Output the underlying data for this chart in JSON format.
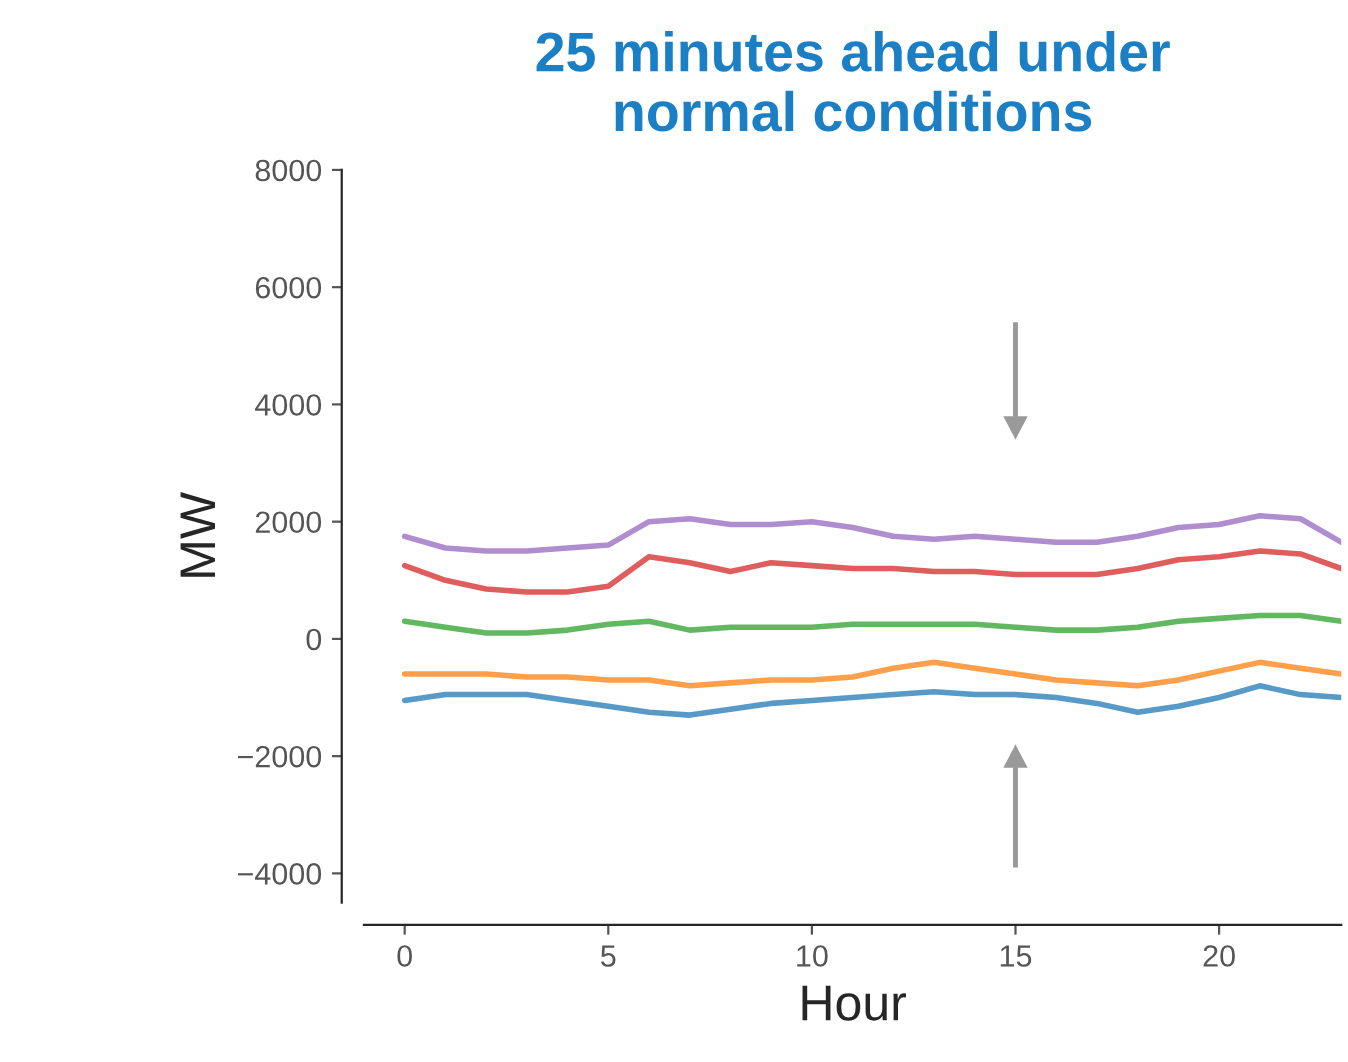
{
  "chart_data": {
    "type": "line",
    "title": "25 minutes ahead under\nnormal conditions",
    "xlabel": "Hour",
    "ylabel": "MW",
    "x": [
      0,
      1,
      2,
      3,
      4,
      5,
      6,
      7,
      8,
      9,
      10,
      11,
      12,
      13,
      14,
      15,
      16,
      17,
      18,
      19,
      20,
      21,
      22,
      23
    ],
    "series": [
      {
        "color": "#1f77b4",
        "values": [
          -1050,
          -950,
          -950,
          -950,
          -1050,
          -1150,
          -1250,
          -1300,
          -1200,
          -1100,
          -1050,
          -1000,
          -950,
          -900,
          -950,
          -950,
          -1000,
          -1100,
          -1250,
          -1150,
          -1000,
          -800,
          -950,
          -1000
        ]
      },
      {
        "color": "#ff7f0e",
        "values": [
          -600,
          -600,
          -600,
          -650,
          -650,
          -700,
          -700,
          -800,
          -750,
          -700,
          -700,
          -650,
          -500,
          -400,
          -500,
          -600,
          -700,
          -750,
          -800,
          -700,
          -550,
          -400,
          -500,
          -600
        ]
      },
      {
        "color": "#2ca02c",
        "values": [
          300,
          200,
          100,
          100,
          150,
          250,
          300,
          150,
          200,
          200,
          200,
          250,
          250,
          250,
          250,
          200,
          150,
          150,
          200,
          300,
          350,
          400,
          400,
          300
        ]
      },
      {
        "color": "#d62728",
        "values": [
          1250,
          1000,
          850,
          800,
          800,
          900,
          1400,
          1300,
          1150,
          1300,
          1250,
          1200,
          1200,
          1150,
          1150,
          1100,
          1100,
          1100,
          1200,
          1350,
          1400,
          1500,
          1450,
          1200
        ]
      },
      {
        "color": "#9467bd",
        "values": [
          1750,
          1550,
          1500,
          1500,
          1550,
          1600,
          2000,
          2050,
          1950,
          1950,
          2000,
          1900,
          1750,
          1700,
          1750,
          1700,
          1650,
          1650,
          1750,
          1900,
          1950,
          2100,
          2050,
          1650
        ]
      }
    ],
    "xlim": [
      -1,
      23
    ],
    "xticks": [
      0,
      5,
      10,
      15,
      20
    ],
    "ylim": [
      -4500,
      8000
    ],
    "yticks": [
      {
        "value": -4000,
        "label": "−4000"
      },
      {
        "value": -2000,
        "label": "−2000"
      },
      0,
      2000,
      4000,
      6000,
      8000
    ],
    "grid": false,
    "legend": false,
    "marker": "none",
    "line_style": "solid"
  }
}
